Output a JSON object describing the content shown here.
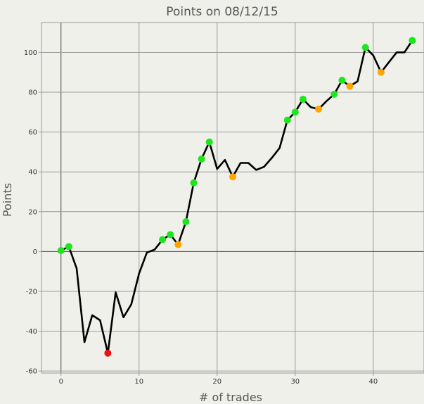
{
  "chart_data": {
    "type": "line",
    "title": "Points on 08/12/15",
    "xlabel": "# of trades",
    "ylabel": "Points",
    "xlim": [
      -2.5,
      46.5
    ],
    "ylim": [
      -61,
      115
    ],
    "xticks": [
      0,
      10,
      20,
      30,
      40
    ],
    "yticks": [
      -60,
      -40,
      -20,
      0,
      20,
      40,
      60,
      80,
      100
    ],
    "grid": true,
    "line_color": "#000000",
    "series": [
      {
        "values": [
          [
            0,
            0.5
          ],
          [
            1,
            2.5
          ],
          [
            2,
            -8.5
          ],
          [
            3,
            -45.5
          ],
          [
            4,
            -32
          ],
          [
            5,
            -34.5
          ],
          [
            6,
            -51
          ],
          [
            7,
            -20.5
          ],
          [
            8,
            -33
          ],
          [
            9,
            -26.5
          ],
          [
            10,
            -11
          ],
          [
            11,
            -0.5
          ],
          [
            12,
            1
          ],
          [
            13,
            6
          ],
          [
            14,
            8.5
          ],
          [
            15,
            3.5
          ],
          [
            16,
            15
          ],
          [
            17,
            34.5
          ],
          [
            18,
            46.5
          ],
          [
            19,
            55
          ],
          [
            20,
            41.5
          ],
          [
            21,
            46
          ],
          [
            22,
            37.5
          ],
          [
            23,
            44.5
          ],
          [
            24,
            44.5
          ],
          [
            25,
            41
          ],
          [
            26,
            42.5
          ],
          [
            27,
            47
          ],
          [
            28,
            52
          ],
          [
            29,
            66
          ],
          [
            30,
            70
          ],
          [
            31,
            76.5
          ],
          [
            32,
            72.5
          ],
          [
            33,
            71.5
          ],
          [
            34,
            75.5
          ],
          [
            35,
            79
          ],
          [
            36,
            86
          ],
          [
            37,
            83
          ],
          [
            38,
            85.5
          ],
          [
            39,
            102.5
          ],
          [
            40,
            98.5
          ],
          [
            41,
            90
          ],
          [
            42,
            95
          ],
          [
            43,
            100
          ],
          [
            44,
            100
          ],
          [
            45,
            106
          ]
        ]
      }
    ],
    "markers": [
      {
        "x": 0,
        "y": 0.5,
        "color": "#1ee61e"
      },
      {
        "x": 1,
        "y": 2.5,
        "color": "#1ee61e"
      },
      {
        "x": 6,
        "y": -51,
        "color": "#ee1111"
      },
      {
        "x": 13,
        "y": 6,
        "color": "#1ee61e"
      },
      {
        "x": 14,
        "y": 8.5,
        "color": "#1ee61e"
      },
      {
        "x": 15,
        "y": 3.5,
        "color": "#ffa500"
      },
      {
        "x": 16,
        "y": 15,
        "color": "#1ee61e"
      },
      {
        "x": 17,
        "y": 34.5,
        "color": "#1ee61e"
      },
      {
        "x": 18,
        "y": 46.5,
        "color": "#1ee61e"
      },
      {
        "x": 19,
        "y": 55,
        "color": "#1ee61e"
      },
      {
        "x": 22,
        "y": 37.5,
        "color": "#ffa500"
      },
      {
        "x": 29,
        "y": 66,
        "color": "#1ee61e"
      },
      {
        "x": 30,
        "y": 70,
        "color": "#1ee61e"
      },
      {
        "x": 31,
        "y": 76.5,
        "color": "#1ee61e"
      },
      {
        "x": 33,
        "y": 71.5,
        "color": "#ffa500"
      },
      {
        "x": 35,
        "y": 79,
        "color": "#1ee61e"
      },
      {
        "x": 36,
        "y": 86,
        "color": "#1ee61e"
      },
      {
        "x": 37,
        "y": 83,
        "color": "#ffa500"
      },
      {
        "x": 39,
        "y": 102.5,
        "color": "#1ee61e"
      },
      {
        "x": 41,
        "y": 90,
        "color": "#ffa500"
      },
      {
        "x": 45,
        "y": 106,
        "color": "#1ee61e"
      }
    ]
  }
}
